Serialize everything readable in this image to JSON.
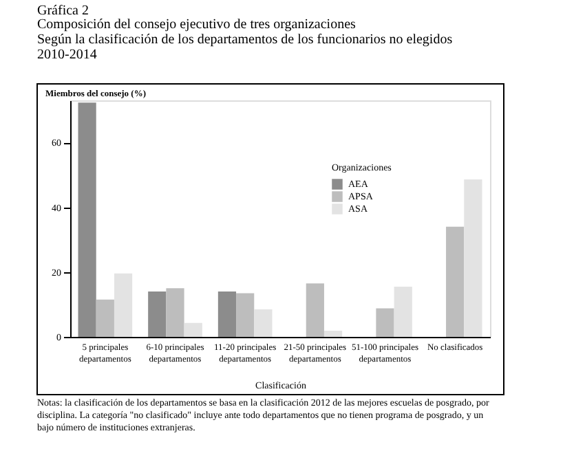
{
  "chart_data": {
    "type": "bar",
    "title": "Gráfica 2",
    "subtitle": "Composición del consejo ejecutivo de tres organizaciones\nSegún la clasificación de los departamentos de los funcionarios no elegidos\n2010-2014",
    "xlabel": "Clasificación",
    "ylabel": "Miembros del consejo (%)",
    "legend_title": "Organizaciones",
    "categories": [
      "5 principales\ndepartamentos",
      "6-10 principales\ndepartamentos",
      "11-20 principales\ndepartamentos",
      "21-50 principales\ndepartamentos",
      "51-100 principales\ndepartamentos",
      "No clasificados"
    ],
    "series": [
      {
        "name": "AEA",
        "color": "#8c8c8c",
        "values": [
          72.3,
          14,
          14,
          0,
          0,
          0
        ]
      },
      {
        "name": "APSA",
        "color": "#bdbdbd",
        "values": [
          11.5,
          15,
          13.5,
          16.5,
          8.8,
          34
        ]
      },
      {
        "name": "ASA",
        "color": "#e3e3e3",
        "values": [
          19.6,
          4.3,
          8.5,
          1.9,
          15.5,
          48.6
        ]
      }
    ],
    "ylim": [
      0,
      73
    ],
    "yticks": [
      0,
      20,
      40,
      60
    ],
    "grid": false,
    "legend": "top right",
    "annotations": [
      "Notas: la clasificación de los departamentos se basa en la clasificación 2012 de las mejores escuelas de posgrado, por disciplina. La categoría \"no clasificado\" incluye ante todo departamentos que no tienen programa de posgrado, y un bajo número de instituciones extranjeras."
    ]
  }
}
